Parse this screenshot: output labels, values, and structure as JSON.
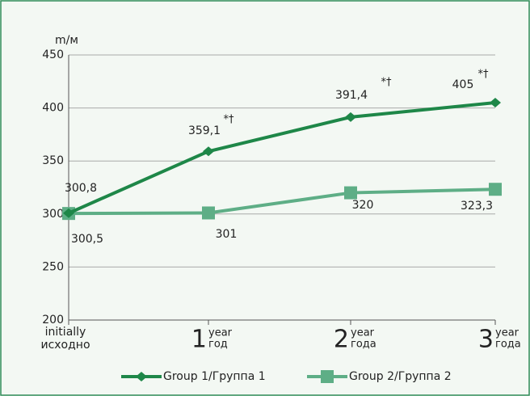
{
  "chart_data": {
    "type": "line",
    "y_label": "m/м",
    "categories": [
      {
        "top": "initially",
        "bottom": "исходно"
      },
      {
        "main": "1",
        "top": "year",
        "bottom": "год"
      },
      {
        "main": "2",
        "top": "year",
        "bottom": "года"
      },
      {
        "main": "3",
        "top": "year",
        "bottom": "года"
      }
    ],
    "series": [
      {
        "name": "Group 1/Группа 1",
        "color": "#1e8748",
        "marker": "diamond",
        "values": [
          300.8,
          359.1,
          391.4,
          405
        ],
        "value_labels": [
          "300,8",
          "359,1",
          "391,4",
          "405"
        ],
        "notes": [
          null,
          "*†",
          "*†",
          "*†"
        ]
      },
      {
        "name": "Group 2/Группа 2",
        "color": "#5eae86",
        "marker": "square",
        "values": [
          300.5,
          301,
          320,
          323.3
        ],
        "value_labels": [
          "300,5",
          "301",
          "320",
          "323,3"
        ]
      }
    ],
    "ylim": [
      200,
      450
    ],
    "yticks": [
      200,
      250,
      300,
      350,
      400,
      450
    ],
    "grid": true
  }
}
